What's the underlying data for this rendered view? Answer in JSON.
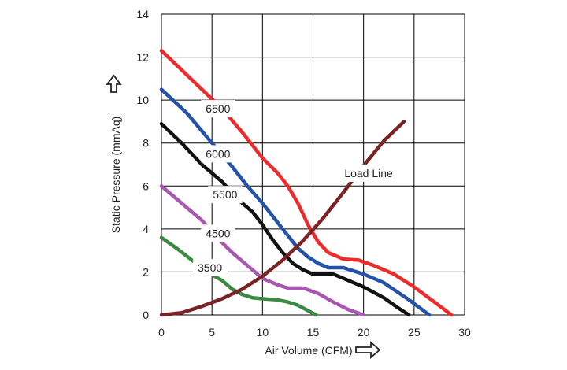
{
  "chart_data": {
    "type": "line",
    "xlabel": "Air Volume (CFM)",
    "ylabel": "Static Pressure (mmAq)",
    "xlim": [
      0,
      30
    ],
    "ylim": [
      0,
      14
    ],
    "xticks": [
      "0",
      "5",
      "10",
      "15",
      "20",
      "25",
      "30"
    ],
    "yticks": [
      "0",
      "2",
      "4",
      "6",
      "8",
      "10",
      "12",
      "14"
    ],
    "grid": true,
    "series": [
      {
        "name": "6500",
        "color": "#ee2b2b",
        "x": [
          0,
          2,
          4,
          6,
          8,
          10,
          11.5,
          12.5,
          13.5,
          14.5,
          15.5,
          16.5,
          18,
          19.5,
          21,
          23,
          25,
          27,
          28.7
        ],
        "y": [
          12.3,
          11.4,
          10.5,
          9.6,
          8.5,
          7.3,
          6.6,
          6.0,
          5.2,
          4.2,
          3.4,
          2.9,
          2.6,
          2.55,
          2.3,
          1.9,
          1.3,
          0.6,
          0
        ]
      },
      {
        "name": "6000",
        "color": "#2352a8",
        "x": [
          0,
          2.5,
          5,
          7,
          8.5,
          10,
          11.5,
          12.5,
          13.5,
          14.5,
          15.5,
          16.5,
          18,
          20,
          22,
          24.5,
          26.5
        ],
        "y": [
          10.5,
          9.4,
          8.0,
          6.9,
          6.0,
          5.2,
          4.3,
          3.7,
          3.1,
          2.7,
          2.4,
          2.2,
          2.2,
          1.9,
          1.5,
          0.7,
          0
        ]
      },
      {
        "name": "5500",
        "color": "#111111",
        "x": [
          0,
          2,
          4,
          6,
          7.5,
          9,
          10,
          11,
          12,
          13,
          14,
          15,
          16,
          17,
          18,
          20,
          22,
          23.5,
          24.5
        ],
        "y": [
          8.9,
          8.0,
          7.0,
          6.2,
          5.4,
          4.8,
          4.2,
          3.5,
          2.9,
          2.4,
          2.1,
          1.9,
          1.9,
          1.9,
          1.7,
          1.3,
          0.8,
          0.3,
          0
        ]
      },
      {
        "name": "4500",
        "color": "#a957b0",
        "x": [
          0,
          2,
          4,
          5.5,
          7,
          8.5,
          10,
          11.5,
          12.5,
          14,
          15.5,
          17,
          18.5,
          20
        ],
        "y": [
          6.0,
          5.2,
          4.4,
          3.6,
          2.9,
          2.3,
          1.7,
          1.4,
          1.25,
          1.25,
          1.0,
          0.6,
          0.25,
          0
        ]
      },
      {
        "name": "3500",
        "color": "#3a8a43",
        "x": [
          0,
          1.5,
          3,
          4.5,
          6,
          7,
          8,
          9,
          10,
          11.5,
          12.5,
          13.5,
          14.5,
          15.3
        ],
        "y": [
          3.6,
          3.1,
          2.55,
          2.0,
          1.6,
          1.2,
          0.95,
          0.8,
          0.75,
          0.7,
          0.6,
          0.45,
          0.2,
          0
        ]
      },
      {
        "name": "Load Line",
        "color": "#7a2324",
        "x": [
          0,
          2,
          4,
          6,
          8,
          10,
          12,
          14,
          16,
          18,
          20,
          22,
          24
        ],
        "y": [
          0,
          0.1,
          0.4,
          0.75,
          1.2,
          1.8,
          2.55,
          3.45,
          4.5,
          5.7,
          6.95,
          8.1,
          9.0
        ]
      }
    ],
    "annotations": [
      {
        "text": "6500",
        "x": 5.6,
        "y": 9.6
      },
      {
        "text": "6000",
        "x": 5.6,
        "y": 7.5
      },
      {
        "text": "5500",
        "x": 6.3,
        "y": 5.6
      },
      {
        "text": "4500",
        "x": 5.6,
        "y": 3.8
      },
      {
        "text": "3500",
        "x": 4.8,
        "y": 2.2
      },
      {
        "text": "Load Line",
        "x": 20.5,
        "y": 6.6
      }
    ]
  }
}
